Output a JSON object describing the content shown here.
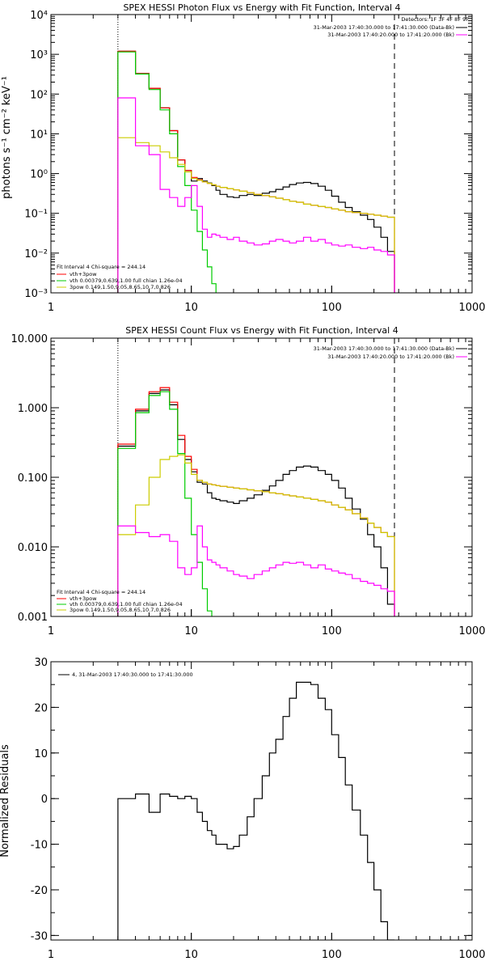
{
  "chart_data": [
    {
      "type": "line",
      "title": "SPEX HESSI Photon Flux vs Energy with Fit Function, Interval 4",
      "ylabel": "photons s⁻¹ cm⁻² keV⁻¹",
      "xlabel": "",
      "x_scale": "log",
      "y_scale": "log",
      "xlim": [
        1,
        1000
      ],
      "ylim": [
        0.001,
        10000
      ],
      "x_ticks": [
        "1",
        "10",
        "100",
        "1000"
      ],
      "y_ticks": [
        "10⁻³",
        "10⁻²",
        "10⁻¹",
        "10⁰",
        "10¹",
        "10²",
        "10³",
        "10⁴"
      ],
      "y_tick_values": [
        0.001,
        0.01,
        0.1,
        1,
        10,
        100,
        1000,
        10000
      ],
      "vlines": [
        {
          "x": 3,
          "style": "dotted"
        },
        {
          "x": 280,
          "style": "dashed"
        }
      ],
      "legend_top_right": [
        {
          "text": "Detectors: 1F 3F 4F 8F 9F",
          "color": "#000000"
        },
        {
          "text": "31-Mar-2003 17:40:30.000 to 17:41:30.000 (Data-Bk)",
          "color": "#000000"
        },
        {
          "text": "31-Mar-2003 17:40:20.000 to 17:41:20.000 (Bk)",
          "color": "#ff00ff"
        }
      ],
      "legend_bottom_left": [
        {
          "text": "Fit Interval 4   Chi-square = 244.14",
          "color": "#000000"
        },
        {
          "text": "vth+3pow",
          "color": "#ff0000"
        },
        {
          "text": "vth 0.00379,0.639,1.00  full chian 1.26e-04",
          "color": "#00cc00"
        },
        {
          "text": "3pow 0.149,1.50,9.05,8.65,10.7,0.826",
          "color": "#cccc00"
        }
      ],
      "series": [
        {
          "color": "#000000",
          "edges": [
            3,
            4,
            5,
            6,
            7,
            8,
            9,
            10,
            11,
            12,
            13,
            14,
            15,
            16,
            18,
            20,
            22,
            25,
            28,
            32,
            36,
            40,
            45,
            50,
            56,
            63,
            71,
            80,
            90,
            100,
            112,
            125,
            140,
            160,
            180,
            200,
            224,
            250,
            280
          ],
          "values": [
            1200,
            330,
            140,
            45,
            12,
            2.2,
            1.2,
            0.65,
            0.75,
            0.65,
            0.58,
            0.5,
            0.38,
            0.3,
            0.26,
            0.25,
            0.28,
            0.3,
            0.28,
            0.32,
            0.35,
            0.4,
            0.46,
            0.53,
            0.58,
            0.6,
            0.56,
            0.48,
            0.38,
            0.27,
            0.19,
            0.14,
            0.11,
            0.09,
            0.07,
            0.045,
            0.025,
            0.011
          ]
        },
        {
          "color": "#ff0000",
          "edges": [
            3,
            4,
            5,
            6,
            7,
            8,
            9,
            10,
            11,
            12,
            13,
            14,
            15,
            16,
            18,
            20,
            22,
            25,
            28,
            32,
            36,
            40,
            45,
            50,
            56,
            63,
            71,
            80,
            90,
            100,
            112,
            125,
            140,
            160,
            180,
            200,
            224,
            250,
            280
          ],
          "values": [
            1200,
            330,
            140,
            45,
            12,
            2.2,
            1.2,
            0.8,
            0.7,
            0.62,
            0.57,
            0.52,
            0.48,
            0.45,
            0.42,
            0.39,
            0.36,
            0.33,
            0.3,
            0.28,
            0.26,
            0.24,
            0.22,
            0.2,
            0.19,
            0.17,
            0.16,
            0.15,
            0.14,
            0.13,
            0.12,
            0.11,
            0.105,
            0.1,
            0.095,
            0.09,
            0.085,
            0.08
          ]
        },
        {
          "color": "#00cc00",
          "edges": [
            3,
            4,
            5,
            6,
            7,
            8,
            9,
            10,
            11,
            12,
            13,
            14,
            15
          ],
          "values": [
            1150,
            320,
            130,
            40,
            10,
            1.5,
            0.5,
            0.12,
            0.035,
            0.012,
            0.0045,
            0.0017
          ]
        },
        {
          "color": "#cccc00",
          "edges": [
            3,
            4,
            5,
            6,
            7,
            8,
            9,
            10,
            11,
            12,
            13,
            14,
            15,
            16,
            18,
            20,
            22,
            25,
            28,
            32,
            36,
            40,
            45,
            50,
            56,
            63,
            71,
            80,
            90,
            100,
            112,
            125,
            140,
            160,
            180,
            200,
            224,
            250,
            280
          ],
          "values": [
            8,
            6,
            5,
            3.5,
            2.5,
            1.7,
            1.1,
            0.75,
            0.68,
            0.62,
            0.57,
            0.52,
            0.48,
            0.45,
            0.42,
            0.39,
            0.36,
            0.33,
            0.3,
            0.28,
            0.26,
            0.24,
            0.22,
            0.2,
            0.19,
            0.17,
            0.16,
            0.15,
            0.14,
            0.13,
            0.12,
            0.11,
            0.105,
            0.1,
            0.095,
            0.09,
            0.085,
            0.08
          ]
        },
        {
          "color": "#ff00ff",
          "edges": [
            3,
            4,
            5,
            6,
            7,
            8,
            9,
            10,
            11,
            12,
            13,
            14,
            15,
            16,
            18,
            20,
            22,
            25,
            28,
            32,
            36,
            40,
            45,
            50,
            56,
            63,
            71,
            80,
            90,
            100,
            112,
            125,
            140,
            160,
            180,
            200,
            224,
            250,
            280
          ],
          "values": [
            80,
            5,
            3,
            0.4,
            0.25,
            0.15,
            0.25,
            0.5,
            0.15,
            0.04,
            0.025,
            0.03,
            0.028,
            0.025,
            0.022,
            0.025,
            0.02,
            0.018,
            0.016,
            0.017,
            0.02,
            0.022,
            0.02,
            0.018,
            0.02,
            0.025,
            0.02,
            0.022,
            0.018,
            0.016,
            0.015,
            0.016,
            0.014,
            0.013,
            0.014,
            0.012,
            0.011,
            0.009
          ]
        }
      ]
    },
    {
      "type": "line",
      "title": "SPEX HESSI Count Flux vs Energy with Fit Function, Interval 4",
      "ylabel": "",
      "xlabel": "",
      "x_scale": "log",
      "y_scale": "log",
      "xlim": [
        1,
        1000
      ],
      "ylim": [
        0.001,
        10
      ],
      "x_ticks": [
        "1",
        "10",
        "100",
        "1000"
      ],
      "y_ticks": [
        "0.001",
        "0.010",
        "0.100",
        "1.000",
        "10.000"
      ],
      "y_tick_values": [
        0.001,
        0.01,
        0.1,
        1,
        10
      ],
      "vlines": [
        {
          "x": 3,
          "style": "dotted"
        },
        {
          "x": 280,
          "style": "dashed"
        }
      ],
      "legend_top_right": [
        {
          "text": "31-Mar-2003 17:40:30.000 to 17:41:30.000 (Data-Bk)",
          "color": "#000000"
        },
        {
          "text": "31-Mar-2003 17:40:20.000 to 17:41:20.000 (Bk)",
          "color": "#ff00ff"
        }
      ],
      "legend_bottom_left": [
        {
          "text": "Fit Interval 4   Chi-square = 244.14",
          "color": "#000000"
        },
        {
          "text": "vth+3pow",
          "color": "#ff0000"
        },
        {
          "text": "vth 0.00379,0.639,1.00  full chian 1.26e-04",
          "color": "#00cc00"
        },
        {
          "text": "3pow 0.149,1.50,9.05,8.65,10.7,0.826",
          "color": "#cccc00"
        }
      ],
      "series": [
        {
          "color": "#000000",
          "edges": [
            3,
            4,
            5,
            6,
            7,
            8,
            9,
            10,
            11,
            12,
            13,
            14,
            15,
            16,
            18,
            20,
            22,
            25,
            28,
            32,
            36,
            40,
            45,
            50,
            56,
            63,
            71,
            80,
            90,
            100,
            112,
            125,
            140,
            160,
            180,
            200,
            224,
            250,
            280
          ],
          "values": [
            0.28,
            0.9,
            1.6,
            1.8,
            1.1,
            0.35,
            0.18,
            0.12,
            0.085,
            0.08,
            0.06,
            0.05,
            0.048,
            0.046,
            0.044,
            0.042,
            0.046,
            0.05,
            0.056,
            0.065,
            0.075,
            0.09,
            0.11,
            0.125,
            0.14,
            0.145,
            0.14,
            0.125,
            0.11,
            0.09,
            0.07,
            0.05,
            0.035,
            0.025,
            0.015,
            0.01,
            0.005,
            0.0015
          ]
        },
        {
          "color": "#ff0000",
          "edges": [
            3,
            4,
            5,
            6,
            7,
            8,
            9,
            10,
            11,
            12,
            13,
            14,
            15,
            16,
            18,
            20,
            22,
            25,
            28,
            32,
            36,
            40,
            45,
            50,
            56,
            63,
            71,
            80,
            90,
            100,
            112,
            125,
            140,
            160,
            180,
            200,
            224,
            250,
            280
          ],
          "values": [
            0.3,
            0.95,
            1.7,
            1.95,
            1.2,
            0.4,
            0.2,
            0.13,
            0.09,
            0.085,
            0.08,
            0.078,
            0.076,
            0.074,
            0.072,
            0.07,
            0.068,
            0.066,
            0.064,
            0.062,
            0.06,
            0.058,
            0.056,
            0.054,
            0.052,
            0.05,
            0.048,
            0.046,
            0.044,
            0.04,
            0.037,
            0.034,
            0.03,
            0.026,
            0.022,
            0.019,
            0.016,
            0.014
          ]
        },
        {
          "color": "#00cc00",
          "edges": [
            3,
            4,
            5,
            6,
            7,
            8,
            9,
            10,
            11,
            12,
            13,
            14
          ],
          "values": [
            0.26,
            0.85,
            1.5,
            1.7,
            0.95,
            0.22,
            0.05,
            0.015,
            0.006,
            0.0025,
            0.0012
          ]
        },
        {
          "color": "#cccc00",
          "edges": [
            3,
            4,
            5,
            6,
            7,
            8,
            9,
            10,
            11,
            12,
            13,
            14,
            15,
            16,
            18,
            20,
            22,
            25,
            28,
            32,
            36,
            40,
            45,
            50,
            56,
            63,
            71,
            80,
            90,
            100,
            112,
            125,
            140,
            160,
            180,
            200,
            224,
            250,
            280
          ],
          "values": [
            0.015,
            0.04,
            0.1,
            0.18,
            0.2,
            0.21,
            0.16,
            0.11,
            0.09,
            0.085,
            0.08,
            0.078,
            0.076,
            0.074,
            0.072,
            0.07,
            0.068,
            0.066,
            0.064,
            0.062,
            0.06,
            0.058,
            0.056,
            0.054,
            0.052,
            0.05,
            0.048,
            0.046,
            0.044,
            0.04,
            0.037,
            0.034,
            0.03,
            0.026,
            0.022,
            0.019,
            0.016,
            0.014
          ]
        },
        {
          "color": "#ff00ff",
          "edges": [
            3,
            4,
            5,
            6,
            7,
            8,
            9,
            10,
            11,
            12,
            13,
            14,
            15,
            16,
            18,
            20,
            22,
            25,
            28,
            32,
            36,
            40,
            45,
            50,
            56,
            63,
            71,
            80,
            90,
            100,
            112,
            125,
            140,
            160,
            180,
            200,
            224,
            250,
            280
          ],
          "values": [
            0.02,
            0.016,
            0.014,
            0.015,
            0.012,
            0.005,
            0.004,
            0.005,
            0.02,
            0.01,
            0.0065,
            0.006,
            0.0055,
            0.005,
            0.0045,
            0.004,
            0.0038,
            0.0035,
            0.004,
            0.0045,
            0.005,
            0.0055,
            0.006,
            0.0058,
            0.006,
            0.0055,
            0.005,
            0.0055,
            0.0048,
            0.0045,
            0.0042,
            0.004,
            0.0035,
            0.0032,
            0.003,
            0.0028,
            0.0025,
            0.0023
          ]
        }
      ]
    },
    {
      "type": "line",
      "title": "",
      "ylabel": "Normalized Residuals",
      "xlabel": "",
      "x_scale": "log",
      "y_scale": "linear",
      "xlim": [
        1,
        1000
      ],
      "ylim": [
        -31,
        30
      ],
      "x_ticks": [
        "1",
        "10",
        "100",
        "1000"
      ],
      "y_ticks": [
        "30",
        "20",
        "10",
        "0",
        "-10",
        "-20",
        "-30"
      ],
      "y_tick_values": [
        30,
        20,
        10,
        0,
        -10,
        -20,
        -30
      ],
      "legend_top_left": [
        {
          "text": "4, 31-Mar-2003 17:40:30.000 to 17:41:30.000",
          "color": "#000000"
        }
      ],
      "series": [
        {
          "color": "#000000",
          "edges": [
            3,
            4,
            5,
            6,
            7,
            8,
            9,
            10,
            11,
            12,
            13,
            14,
            15,
            16,
            18,
            20,
            22,
            25,
            28,
            32,
            36,
            40,
            45,
            50,
            56,
            63,
            71,
            80,
            90,
            100,
            112,
            125,
            140,
            160,
            180,
            200,
            224,
            250,
            280
          ],
          "values": [
            0,
            1,
            -3,
            1,
            0.5,
            0,
            0.5,
            0,
            -3,
            -5,
            -7,
            -8,
            -10,
            -10,
            -11,
            -10.5,
            -8,
            -4,
            0,
            5,
            10,
            13,
            18,
            22,
            25.5,
            25.5,
            25,
            22,
            19.5,
            14,
            9,
            3,
            -2.5,
            -8,
            -14,
            -20,
            -27,
            -31
          ]
        }
      ]
    }
  ]
}
